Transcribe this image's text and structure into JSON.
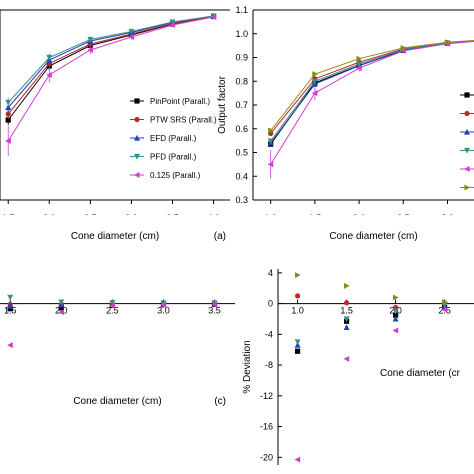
{
  "colors": {
    "pinpoint": "#000000",
    "ptw_srs": "#c0272d",
    "efd": "#1f3fbf",
    "pfd": "#3a8f86",
    "chamber_0125": "#d13fd1",
    "extra": "#8a8a1a"
  },
  "chart_data": [
    {
      "id": "a",
      "type": "line",
      "panel_label": "(a)",
      "xlabel": "Cone diameter (cm)",
      "ylabel": "",
      "xlim": [
        1.4,
        4.2
      ],
      "ylim": [
        0.62,
        1.0
      ],
      "xticks": [
        "1.5",
        "2.0",
        "2.5",
        "3.0",
        "3.5",
        "4.0"
      ],
      "x": [
        1.5,
        2.0,
        2.5,
        3.0,
        3.5,
        4.0
      ],
      "legend_position": "center-right",
      "series": [
        {
          "name": "PinPoint (Parall.)",
          "marker": "square",
          "color_key": "pinpoint",
          "values": [
            0.78,
            0.888,
            0.929,
            0.95,
            0.972,
            0.987
          ],
          "err": [
            0.01,
            0.008,
            0.005,
            0.004,
            0.003,
            0.002
          ]
        },
        {
          "name": "PTW SRS (Parall.)",
          "marker": "circle",
          "color_key": "ptw_srs",
          "values": [
            0.792,
            0.893,
            0.932,
            0.952,
            0.973,
            0.987
          ],
          "err": [
            0.01,
            0.008,
            0.005,
            0.004,
            0.003,
            0.002
          ]
        },
        {
          "name": "EFD (Parall.)",
          "marker": "triangle-up",
          "color_key": "efd",
          "values": [
            0.805,
            0.9,
            0.938,
            0.955,
            0.975,
            0.988
          ],
          "err": [
            0.01,
            0.008,
            0.005,
            0.004,
            0.003,
            0.002
          ]
        },
        {
          "name": "PFD (Parall.)",
          "marker": "triangle-down",
          "color_key": "pfd",
          "values": [
            0.815,
            0.905,
            0.941,
            0.957,
            0.976,
            0.988
          ],
          "err": [
            0.01,
            0.008,
            0.005,
            0.004,
            0.003,
            0.002
          ]
        },
        {
          "name": "0.125 (Parall.)",
          "marker": "triangle-left",
          "color_key": "chamber_0125",
          "values": [
            0.738,
            0.87,
            0.92,
            0.946,
            0.97,
            0.986
          ],
          "err": [
            0.03,
            0.015,
            0.008,
            0.005,
            0.004,
            0.003
          ]
        }
      ]
    },
    {
      "id": "b",
      "type": "line",
      "panel_label": "",
      "xlabel": "Cone diameter (cm)",
      "ylabel": "Output factor",
      "xlim": [
        0.8,
        3.3
      ],
      "ylim": [
        0.3,
        1.1
      ],
      "xticks": [
        "1.0",
        "1.5",
        "2.0",
        "2.5",
        "3.0"
      ],
      "yticks": [
        "0.3",
        "0.4",
        "0.5",
        "0.6",
        "0.7",
        "0.8",
        "0.9",
        "1.0",
        "1.1"
      ],
      "x": [
        1.0,
        1.5,
        2.0,
        2.5,
        3.0,
        3.5
      ],
      "legend_position": "center-right",
      "series": [
        {
          "marker": "square",
          "color_key": "pinpoint",
          "values": [
            0.535,
            0.793,
            0.866,
            0.93,
            0.96,
            0.975
          ],
          "err": [
            0.01,
            0.01,
            0.008,
            0.005,
            0.004,
            0.003
          ]
        },
        {
          "marker": "circle",
          "color_key": "ptw_srs",
          "values": [
            0.58,
            0.81,
            0.88,
            0.936,
            0.962,
            0.976
          ],
          "err": [
            0.01,
            0.01,
            0.008,
            0.005,
            0.004,
            0.003
          ]
        },
        {
          "marker": "triangle-up",
          "color_key": "efd",
          "values": [
            0.54,
            0.788,
            0.865,
            0.932,
            0.96,
            0.975
          ],
          "err": [
            0.01,
            0.01,
            0.008,
            0.005,
            0.004,
            0.003
          ]
        },
        {
          "marker": "triangle-down",
          "color_key": "pfd",
          "values": [
            0.548,
            0.8,
            0.872,
            0.934,
            0.961,
            0.976
          ],
          "err": [
            0.01,
            0.01,
            0.008,
            0.005,
            0.004,
            0.003
          ]
        },
        {
          "marker": "triangle-left",
          "color_key": "chamber_0125",
          "values": [
            0.45,
            0.75,
            0.855,
            0.928,
            0.958,
            0.974
          ],
          "err": [
            0.06,
            0.03,
            0.015,
            0.008,
            0.005,
            0.004
          ]
        },
        {
          "marker": "triangle-right",
          "color_key": "extra",
          "values": [
            0.592,
            0.83,
            0.895,
            0.94,
            0.964,
            0.977
          ],
          "err": [
            0.01,
            0.01,
            0.008,
            0.005,
            0.004,
            0.003
          ]
        }
      ]
    },
    {
      "id": "c",
      "type": "scatter",
      "panel_label": "(c)",
      "xlabel": "Cone diameter (cm)",
      "ylabel": "",
      "xlim": [
        1.4,
        3.7
      ],
      "ylim": [
        -15.5,
        3.0
      ],
      "xticks": [
        "1.5",
        "2.0",
        "2.5",
        "3.0",
        "3.5"
      ],
      "x": [
        1.5,
        2.0,
        2.5,
        3.0,
        3.5
      ],
      "series": [
        {
          "marker": "square",
          "color_key": "pinpoint",
          "values": [
            -1.8,
            -1.5,
            -0.6,
            -0.4,
            -0.3
          ]
        },
        {
          "marker": "circle",
          "color_key": "ptw_srs",
          "values": [
            -0.3,
            -0.3,
            -0.2,
            -0.2,
            -0.2
          ]
        },
        {
          "marker": "triangle-up",
          "color_key": "efd",
          "values": [
            -0.9,
            -0.5,
            -0.3,
            -0.2,
            -0.2
          ]
        },
        {
          "marker": "triangle-down",
          "color_key": "pfd",
          "values": [
            2.2,
            0.5,
            0.3,
            0.2,
            0.2
          ]
        },
        {
          "marker": "triangle-left",
          "color_key": "chamber_0125",
          "values": [
            -14.5,
            -3.0,
            -0.8,
            -0.5,
            -0.3
          ]
        }
      ]
    },
    {
      "id": "d",
      "type": "scatter",
      "panel_label": "",
      "xlabel": "Cone diameter (cr",
      "ylabel": "% Deviation",
      "xlim": [
        0.8,
        2.8
      ],
      "ylim": [
        -21,
        4.5
      ],
      "xticks": [
        "1.0",
        "1.5",
        "2.0",
        "2.5"
      ],
      "yticks": [
        "4",
        "0",
        "-4",
        "-8",
        "-12",
        "-16",
        "-20"
      ],
      "x": [
        1.0,
        1.5,
        2.0,
        2.5
      ],
      "series": [
        {
          "marker": "square",
          "color_key": "pinpoint",
          "values": [
            -6.2,
            -2.3,
            -1.5,
            -0.5
          ]
        },
        {
          "marker": "circle",
          "color_key": "ptw_srs",
          "values": [
            1.0,
            0.1,
            -0.5,
            0.1
          ]
        },
        {
          "marker": "triangle-up",
          "color_key": "efd",
          "values": [
            -5.4,
            -3.1,
            -2.0,
            -0.3
          ]
        },
        {
          "marker": "triangle-down",
          "color_key": "pfd",
          "values": [
            -5.0,
            -2.0,
            -1.0,
            -0.2
          ]
        },
        {
          "marker": "triangle-left",
          "color_key": "chamber_0125",
          "values": [
            -20.3,
            -7.2,
            -3.5,
            -0.8
          ]
        },
        {
          "marker": "triangle-right",
          "color_key": "extra",
          "values": [
            3.7,
            2.3,
            0.8,
            0.2
          ]
        }
      ]
    }
  ]
}
